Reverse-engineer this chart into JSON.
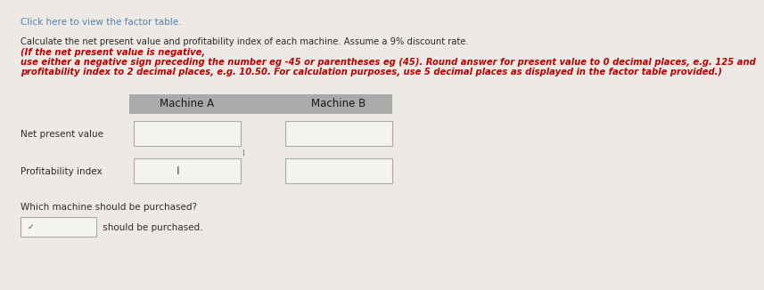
{
  "background_color": "#edeae5",
  "click_link_text": "Click here to view the factor table.",
  "click_link_color": "#5580b0",
  "instr_line1_black": "Calculate the net present value and profitability index of each machine. Assume a 9% discount rate. ",
  "instr_line1_red": "(If the net present value is negative,",
  "instr_line2_red": "use either a negative sign preceding the number eg -45 or parentheses eg (45). Round answer for present value to 0 decimal places, e.g. 125 and",
  "instr_line3_red": "profitability index to 2 decimal places, e.g. 10.50. For calculation purposes, use 5 decimal places as displayed in the factor table provided.)",
  "text_color": "#2b2b2b",
  "red_color": "#bb0000",
  "header_bg": "#aaaaaa",
  "header_text_color": "#1a1a1a",
  "col_machine_a": "Machine A",
  "col_machine_b": "Machine B",
  "row1_label": "Net present value",
  "row2_label": "Profitability index",
  "which_machine_text": "Which machine should be purchased?",
  "should_be_purchased_text": " should be purchased.",
  "input_box_color": "#f5f3f0",
  "input_box_edge": "#aaaaaa",
  "label_fontsize": 7.5,
  "header_fontsize": 8.5,
  "instr_fontsize": 7.2,
  "click_fontsize": 7.5
}
